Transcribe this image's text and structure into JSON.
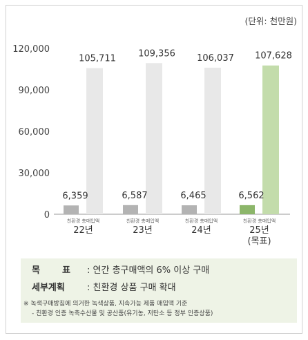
{
  "unit_label": "(단위: 천만원)",
  "chart_data": {
    "type": "bar",
    "categories": [
      "22년",
      "23년",
      "24년",
      "25년\n(목표)"
    ],
    "category_lines": [
      [
        "22년"
      ],
      [
        "23년"
      ],
      [
        "24년"
      ],
      [
        "25년",
        "(목표)"
      ]
    ],
    "series": [
      {
        "name": "친환경",
        "values": [
          6359,
          6587,
          6465,
          6562
        ]
      },
      {
        "name": "총매입액",
        "values": [
          105711,
          109356,
          106037,
          107628
        ]
      }
    ],
    "value_labels": [
      [
        "6,359",
        "6,587",
        "6,465",
        "6,562"
      ],
      [
        "105,711",
        "109,356",
        "106,037",
        "107,628"
      ]
    ],
    "bar_caption": "친환경 총매입액",
    "yticks": [
      "0",
      "30,000",
      "60,000",
      "90,000",
      "120,000"
    ],
    "ytick_values": [
      0,
      30000,
      60000,
      90000,
      120000
    ],
    "ylim": [
      0,
      120000
    ],
    "colors": {
      "eco_past": "#b3b3b3",
      "total_past": "#e8e8e8",
      "eco_target": "#8cb66a",
      "total_target": "#c3dcab"
    },
    "grid": false
  },
  "goal": {
    "label_1": "목",
    "label_2": "표",
    "text": ": 연간 총구매액의 6% 이상 구매"
  },
  "plan": {
    "label": "세부계획",
    "text": ": 친환경 상품 구매 확대"
  },
  "notes": [
    "※ 녹색구매방침에 의거한 녹색상품, 지속가능 제품 매입액 기준",
    "- 친환경 인증 녹축수산물 및 공산품(유기농, 저탄소 등 정부 인증상품)"
  ]
}
